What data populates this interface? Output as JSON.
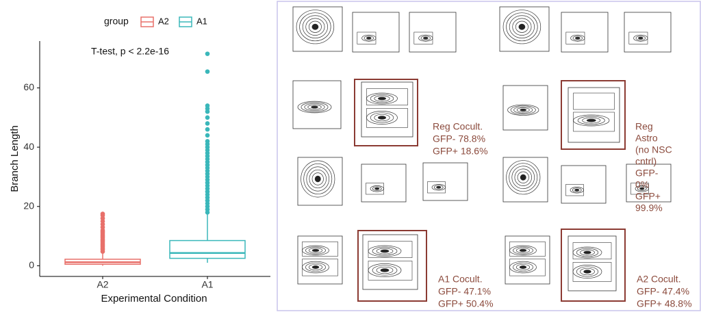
{
  "chart_data": {
    "type": "box",
    "annotation": "T-test, p < 2.2e-16",
    "x_label": "Experimental Condition",
    "y_label": "Branch Length",
    "legend_title": "group",
    "categories": [
      "A2",
      "A1"
    ],
    "series": [
      {
        "name": "A2",
        "color": "#e8706a",
        "min": 0,
        "q1": 0.5,
        "median": 1.2,
        "q3": 2.2,
        "max": 4.5,
        "outliers": [
          4.8,
          5.5,
          6,
          6.5,
          7,
          7.5,
          8,
          8.5,
          9,
          9.5,
          10,
          10.5,
          11,
          11.5,
          12,
          13,
          14,
          15,
          16,
          17,
          17.5
        ]
      },
      {
        "name": "A1",
        "color": "#3ab7ba",
        "min": 1,
        "q1": 2.5,
        "median": 4.3,
        "q3": 8.5,
        "max": 17.5,
        "outliers": [
          18,
          19,
          20,
          21,
          22,
          23,
          24,
          25,
          26,
          27,
          28,
          29,
          30,
          31,
          32,
          33,
          34,
          35,
          36,
          37,
          38,
          39,
          40,
          41,
          42,
          44,
          46,
          48,
          50,
          52,
          53,
          54,
          65.5,
          71.5
        ]
      }
    ],
    "ylim": [
      -3.6,
      75.8
    ],
    "yticks": [
      0,
      20,
      40,
      60
    ],
    "grid": false
  },
  "flow_panels": {
    "annotations": [
      [
        "Reg Cocult.",
        "GFP- 78.8%",
        "GFP+ 18.6%"
      ],
      [
        "Reg",
        "Astro",
        "(no NSC",
        "cntrl)",
        "GFP-",
        "0%",
        "GFP+",
        "99.9%"
      ],
      [
        "A1 Cocult.",
        "GFP- 47.1%",
        "GFP+ 50.4%"
      ],
      [
        "A2 Cocult.",
        "GFP- 47.4%",
        "GFP+ 48.8%"
      ]
    ]
  }
}
